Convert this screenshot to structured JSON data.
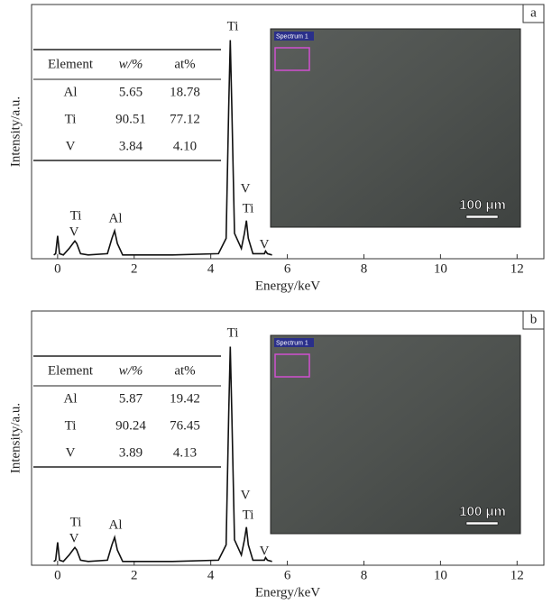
{
  "chart_data": [
    {
      "type": "line",
      "panel": "a",
      "ylabel": "Intensity/a.u.",
      "xlabel": "Energy/keV",
      "xlim": [
        -0.68,
        12.7
      ],
      "xticks": [
        0,
        2,
        4,
        6,
        8,
        10,
        12
      ],
      "ylim": [
        0,
        100
      ],
      "color": "#111111",
      "x": [
        -0.1,
        -0.05,
        0.0,
        0.05,
        0.15,
        0.3,
        0.4,
        0.45,
        0.5,
        0.6,
        0.8,
        1.3,
        1.42,
        1.49,
        1.56,
        1.7,
        3.0,
        4.2,
        4.4,
        4.47,
        4.51,
        4.55,
        4.62,
        4.8,
        4.88,
        4.93,
        4.98,
        5.1,
        5.4,
        5.43,
        5.48,
        5.6
      ],
      "values": [
        1.5,
        2,
        9,
        2,
        1.5,
        4,
        6,
        7,
        6,
        2,
        1.5,
        2,
        8,
        11,
        6,
        1.5,
        1.5,
        2,
        8,
        60,
        86,
        60,
        10,
        4,
        10,
        15,
        8,
        2,
        2,
        3,
        2,
        1.5
      ],
      "peak_labels": [
        "Ti",
        "V",
        "Ti",
        "Ti",
        "V",
        "Al",
        "V"
      ],
      "table": {
        "header": [
          "Element",
          "w/%",
          "at%"
        ],
        "rows": [
          [
            "Al",
            "5.65",
            "18.78"
          ],
          [
            "Ti",
            "90.51",
            "77.12"
          ],
          [
            "V",
            "3.84",
            "4.10"
          ]
        ]
      },
      "image": {
        "spectrum": "Spectrum 1",
        "scale": "100 μm"
      }
    },
    {
      "type": "line",
      "panel": "b",
      "ylabel": "Intensity/a.u.",
      "xlabel": "Energy/keV",
      "xlim": [
        -0.68,
        12.7
      ],
      "xticks": [
        0,
        2,
        4,
        6,
        8,
        10,
        12
      ],
      "ylim": [
        0,
        100
      ],
      "color": "#111111",
      "x": [
        -0.1,
        -0.05,
        0.0,
        0.05,
        0.15,
        0.3,
        0.4,
        0.45,
        0.5,
        0.6,
        0.8,
        1.3,
        1.42,
        1.49,
        1.56,
        1.7,
        3.0,
        4.2,
        4.4,
        4.47,
        4.51,
        4.55,
        4.62,
        4.8,
        4.88,
        4.93,
        4.98,
        5.1,
        5.4,
        5.43,
        5.48,
        5.6
      ],
      "values": [
        1.5,
        2,
        9,
        2,
        1.5,
        4,
        6,
        7,
        6,
        2,
        1.5,
        2,
        8,
        11,
        6,
        1.5,
        1.5,
        2,
        8,
        60,
        86,
        60,
        10,
        4,
        10,
        15,
        8,
        2,
        2,
        3,
        2,
        1.5
      ],
      "peak_labels": [
        "Ti",
        "V",
        "Ti",
        "Ti",
        "V",
        "Al",
        "V"
      ],
      "table": {
        "header": [
          "Element",
          "w/%",
          "at%"
        ],
        "rows": [
          [
            "Al",
            "5.87",
            "19.42"
          ],
          [
            "Ti",
            "90.24",
            "76.45"
          ],
          [
            "V",
            "3.89",
            "4.13"
          ]
        ]
      },
      "image": {
        "spectrum": "Spectrum 1",
        "scale": "100 μm"
      }
    }
  ]
}
